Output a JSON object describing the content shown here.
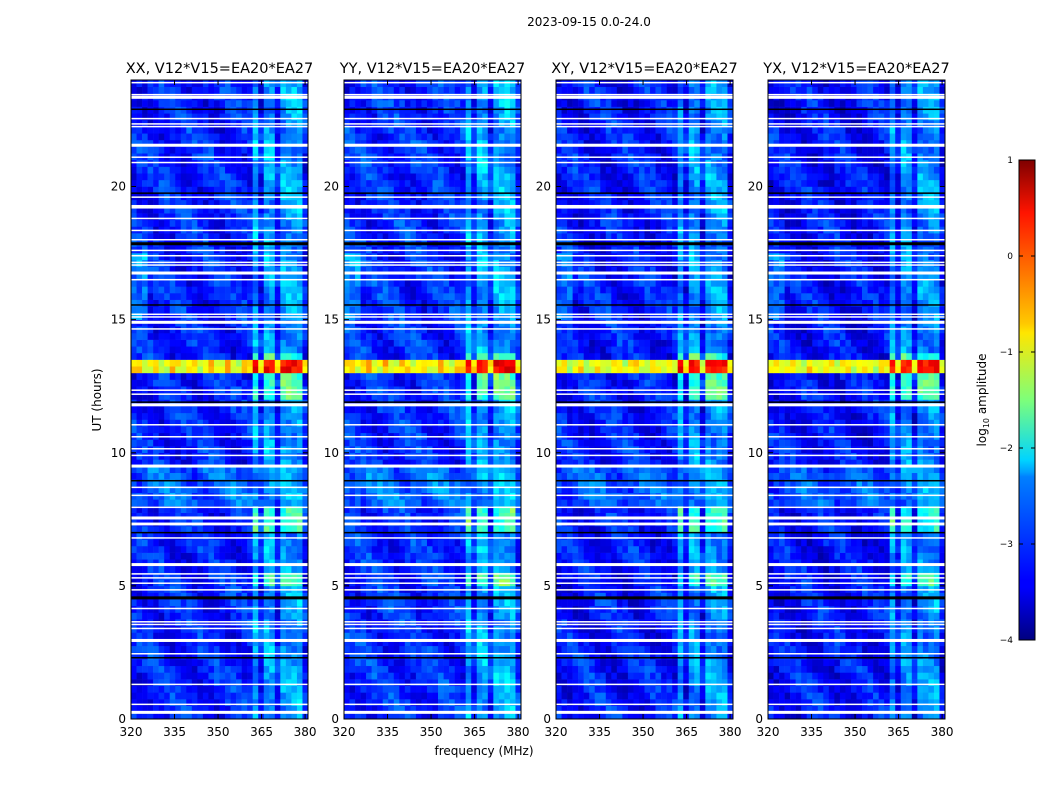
{
  "suptitle": "2023-09-15 0.0-24.0",
  "chart_data": {
    "type": "heatmap",
    "panels": [
      {
        "title": "XX, V12*V15=EA20*EA27",
        "band": 0.0
      },
      {
        "title": "YY, V12*V15=EA20*EA27",
        "band": 0.06
      },
      {
        "title": "XY, V12*V15=EA20*EA27",
        "band": -0.04
      },
      {
        "title": "YX, V12*V15=EA20*EA27",
        "band": -0.08
      }
    ],
    "xlabel": "frequency (MHz)",
    "ylabel": "UT (hours)",
    "xlim": [
      320,
      381
    ],
    "ylim": [
      0,
      24
    ],
    "xticks": [
      "320",
      "335",
      "350",
      "365",
      "380"
    ],
    "xtick_values": [
      320,
      335,
      350,
      365,
      380
    ],
    "yticks": [
      "0",
      "5",
      "10",
      "15",
      "20"
    ],
    "ytick_values": [
      0,
      5,
      10,
      15,
      20
    ],
    "colorbar": {
      "label_main": "log",
      "label_sub": "10",
      "label_rest": " amplitude",
      "range": [
        -4,
        1
      ],
      "ticks": [
        "1",
        "0",
        "−1",
        "−2",
        "−3",
        "−4"
      ],
      "tick_values": [
        1,
        0,
        -1,
        -2,
        -3,
        -4
      ]
    },
    "rfi_channels_mhz": [
      [
        361,
        364.5
      ],
      [
        366,
        369.5
      ],
      [
        371,
        374.5
      ],
      [
        376,
        379.5
      ]
    ],
    "bright_event_ut": [
      12.9,
      13.45
    ],
    "flagged_ut_hours": [
      0.25,
      0.55,
      1.3,
      2.3,
      2.45,
      2.95,
      3.4,
      3.55,
      3.65,
      4.15,
      4.55,
      4.85,
      5.1,
      5.3,
      5.45,
      5.8,
      6.8,
      7.0,
      7.3,
      7.35,
      7.55,
      7.95,
      8.4,
      8.7,
      8.95,
      9.5,
      9.9,
      10.15,
      10.6,
      11.05,
      11.8,
      11.9,
      12.2,
      12.35,
      14.65,
      14.9,
      15.1,
      15.2,
      15.55,
      16.5,
      16.75,
      17.05,
      17.15,
      17.4,
      17.6,
      17.85,
      18.0,
      18.35,
      18.8,
      19.2,
      19.25,
      19.6,
      19.75,
      20.9,
      21.1,
      21.55,
      22.25,
      22.35,
      22.55,
      22.9,
      23.35,
      23.45,
      23.9
    ]
  }
}
